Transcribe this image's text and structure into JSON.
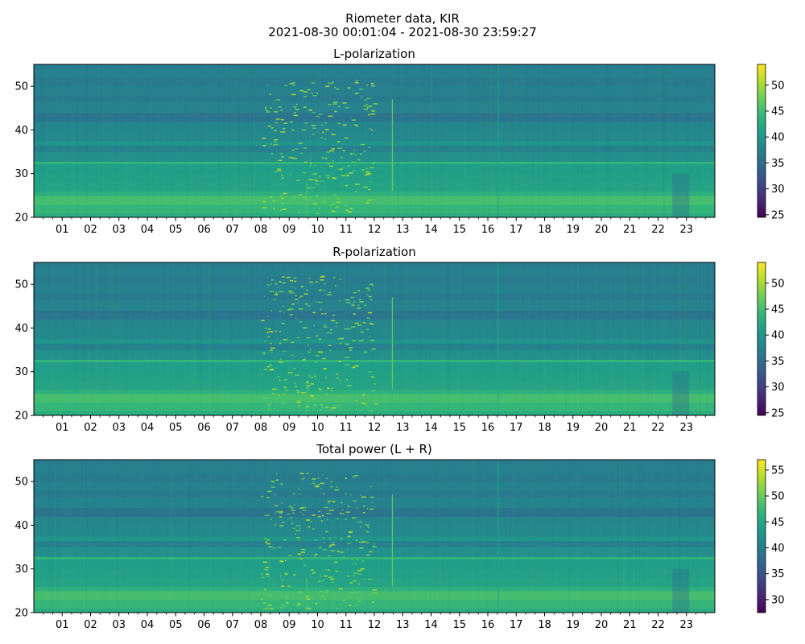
{
  "figure": {
    "title_line1": "Riometer data, KIR",
    "title_line2": "2021-08-30 00:01:04 - 2021-08-30 23:59:27"
  },
  "colormap": {
    "name": "viridis",
    "stops": [
      "#440154",
      "#482878",
      "#3e4989",
      "#31688e",
      "#26828e",
      "#1f9e89",
      "#35b779",
      "#6ece58",
      "#b5de2b",
      "#fde725"
    ]
  },
  "chart_data": [
    {
      "type": "heatmap",
      "title": "L-polarization",
      "x_tick_labels": [
        "01",
        "02",
        "03",
        "04",
        "05",
        "06",
        "07",
        "08",
        "09",
        "10",
        "11",
        "12",
        "13",
        "14",
        "15",
        "16",
        "17",
        "18",
        "19",
        "20",
        "21",
        "22",
        "23"
      ],
      "x_range_hours": [
        0,
        24
      ],
      "y_ticks": [
        20,
        30,
        40,
        50
      ],
      "ylim": [
        20,
        55
      ],
      "colorbar_ticks": [
        25,
        30,
        35,
        40,
        45,
        50
      ],
      "clim": [
        24.5,
        54
      ]
    },
    {
      "type": "heatmap",
      "title": "R-polarization",
      "x_tick_labels": [
        "01",
        "02",
        "03",
        "04",
        "05",
        "06",
        "07",
        "08",
        "09",
        "10",
        "11",
        "12",
        "13",
        "14",
        "15",
        "16",
        "17",
        "18",
        "19",
        "20",
        "21",
        "22",
        "23"
      ],
      "x_range_hours": [
        0,
        24
      ],
      "y_ticks": [
        20,
        30,
        40,
        50
      ],
      "ylim": [
        20,
        55
      ],
      "colorbar_ticks": [
        25,
        30,
        35,
        40,
        45,
        50
      ],
      "clim": [
        24.5,
        54
      ]
    },
    {
      "type": "heatmap",
      "title": "Total power (L + R)",
      "x_tick_labels": [
        "01",
        "02",
        "03",
        "04",
        "05",
        "06",
        "07",
        "08",
        "09",
        "10",
        "11",
        "12",
        "13",
        "14",
        "15",
        "16",
        "17",
        "18",
        "19",
        "20",
        "21",
        "22",
        "23"
      ],
      "x_range_hours": [
        0,
        24
      ],
      "y_ticks": [
        20,
        30,
        40,
        50
      ],
      "ylim": [
        20,
        55
      ],
      "colorbar_ticks": [
        30,
        35,
        40,
        45,
        50,
        55
      ],
      "clim": [
        27.5,
        57
      ]
    }
  ]
}
